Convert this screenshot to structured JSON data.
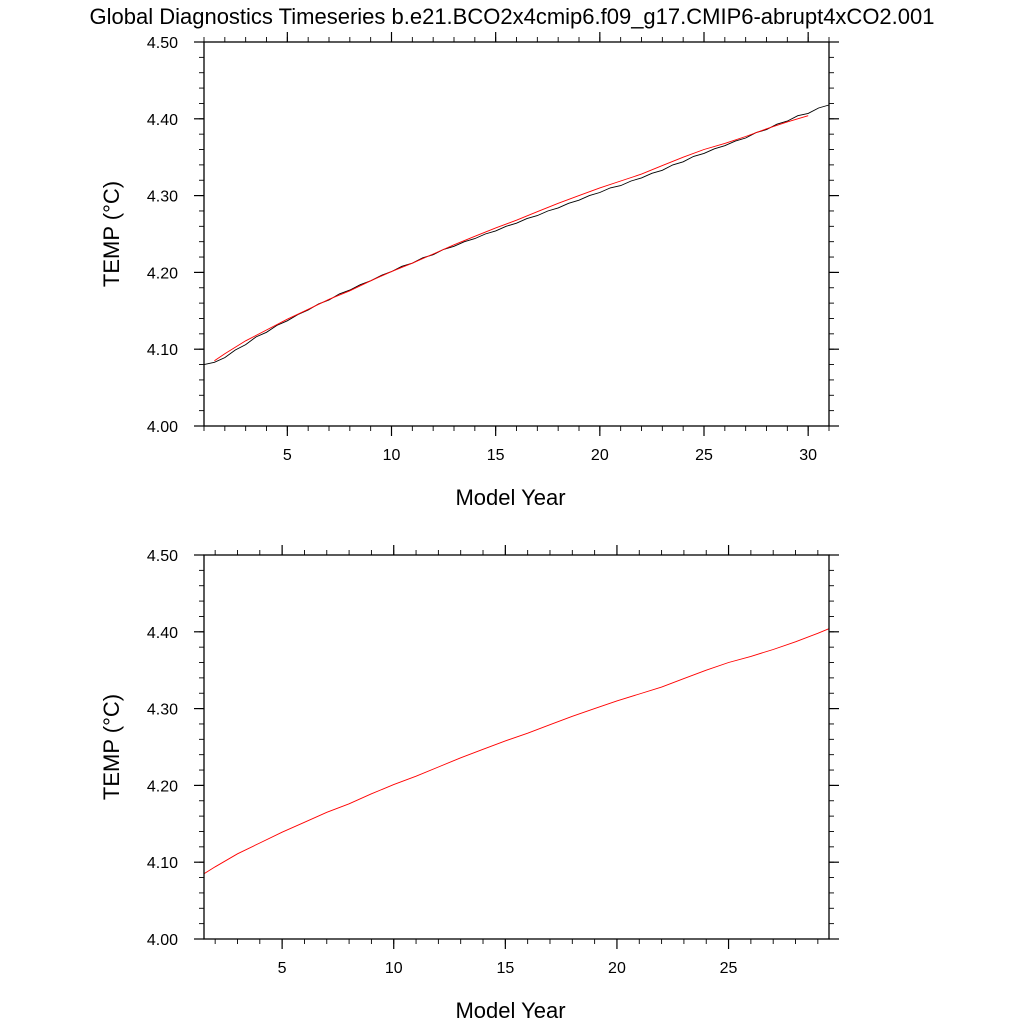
{
  "figure": {
    "title": "Global Diagnostics Timeseries b.e21.BCO2x4cmip6.f09_g17.CMIP6-abrupt4xCO2.001"
  },
  "chart_data": [
    {
      "type": "line",
      "xlabel": "Model Year",
      "ylabel": "TEMP (°C)",
      "xlim": [
        1,
        31
      ],
      "ylim": [
        4.0,
        4.5
      ],
      "xticks": [
        5,
        10,
        15,
        20,
        25,
        30
      ],
      "xtick_labels": [
        "5",
        "10",
        "15",
        "20",
        "25",
        "30"
      ],
      "yticks": [
        4.0,
        4.1,
        4.2,
        4.3,
        4.4,
        4.5
      ],
      "ytick_labels": [
        "4.00",
        "4.10",
        "4.20",
        "4.30",
        "4.40",
        "4.50"
      ],
      "grid": false,
      "series": [
        {
          "color": "#000000",
          "style": "monthly values with annual cycle",
          "x": [
            1.0,
            1.5,
            2.0,
            2.5,
            3.0,
            3.5,
            4.0,
            4.5,
            5.0,
            5.5,
            6.0,
            6.5,
            7.0,
            7.5,
            8.0,
            8.5,
            9.0,
            9.5,
            10.0,
            10.5,
            11.0,
            11.5,
            12.0,
            12.5,
            13.0,
            13.5,
            14.0,
            14.5,
            15.0,
            15.5,
            16.0,
            16.5,
            17.0,
            17.5,
            18.0,
            18.5,
            19.0,
            19.5,
            20.0,
            20.5,
            21.0,
            21.5,
            22.0,
            22.5,
            23.0,
            23.5,
            24.0,
            24.5,
            25.0,
            25.5,
            26.0,
            26.5,
            27.0,
            27.5,
            28.0,
            28.5,
            29.0,
            29.5,
            30.0,
            30.5,
            31.0
          ],
          "y": [
            4.08,
            4.083,
            4.089,
            4.099,
            4.106,
            4.116,
            4.122,
            4.131,
            4.137,
            4.145,
            4.151,
            4.159,
            4.164,
            4.172,
            4.177,
            4.184,
            4.189,
            4.196,
            4.201,
            4.208,
            4.212,
            4.219,
            4.223,
            4.23,
            4.234,
            4.24,
            4.244,
            4.25,
            4.254,
            4.26,
            4.264,
            4.27,
            4.274,
            4.28,
            4.284,
            4.29,
            4.294,
            4.3,
            4.304,
            4.31,
            4.313,
            4.319,
            4.323,
            4.329,
            4.333,
            4.34,
            4.344,
            4.351,
            4.355,
            4.361,
            4.365,
            4.371,
            4.375,
            4.382,
            4.386,
            4.393,
            4.397,
            4.404,
            4.407,
            4.414,
            4.418
          ]
        },
        {
          "color": "#ff0000",
          "style": "smoothed",
          "x": [
            1.5,
            2.0,
            3.0,
            4.0,
            5.0,
            6.0,
            7.0,
            8.0,
            9.0,
            10.0,
            11.0,
            12.0,
            13.0,
            14.0,
            15.0,
            16.0,
            17.0,
            18.0,
            19.0,
            20.0,
            21.0,
            22.0,
            23.0,
            24.0,
            25.0,
            26.0,
            27.0,
            28.0,
            29.0,
            30.0
          ],
          "y": [
            4.085,
            4.094,
            4.111,
            4.125,
            4.139,
            4.152,
            4.165,
            4.176,
            4.189,
            4.201,
            4.212,
            4.224,
            4.236,
            4.247,
            4.258,
            4.268,
            4.279,
            4.29,
            4.3,
            4.31,
            4.319,
            4.328,
            4.339,
            4.35,
            4.36,
            4.368,
            4.377,
            4.387,
            4.396,
            4.404
          ]
        }
      ]
    },
    {
      "type": "line",
      "xlabel": "Model Year",
      "ylabel": "TEMP (°C)",
      "xlim": [
        1.5,
        29.5
      ],
      "ylim": [
        4.0,
        4.5
      ],
      "xticks": [
        5,
        10,
        15,
        20,
        25
      ],
      "xtick_labels": [
        "5",
        "10",
        "15",
        "20",
        "25"
      ],
      "yticks": [
        4.0,
        4.1,
        4.2,
        4.3,
        4.4,
        4.5
      ],
      "ytick_labels": [
        "4.00",
        "4.10",
        "4.20",
        "4.30",
        "4.40",
        "4.50"
      ],
      "grid": false,
      "series": [
        {
          "color": "#ff0000",
          "style": "smoothed",
          "x": [
            1.5,
            2.0,
            3.0,
            4.0,
            5.0,
            6.0,
            7.0,
            8.0,
            9.0,
            10.0,
            11.0,
            12.0,
            13.0,
            14.0,
            15.0,
            16.0,
            17.0,
            18.0,
            19.0,
            20.0,
            21.0,
            22.0,
            23.0,
            24.0,
            25.0,
            26.0,
            27.0,
            28.0,
            29.0,
            29.5
          ],
          "y": [
            4.085,
            4.094,
            4.111,
            4.125,
            4.139,
            4.152,
            4.165,
            4.176,
            4.189,
            4.201,
            4.212,
            4.224,
            4.236,
            4.247,
            4.258,
            4.268,
            4.279,
            4.29,
            4.3,
            4.31,
            4.319,
            4.328,
            4.339,
            4.35,
            4.36,
            4.368,
            4.377,
            4.387,
            4.398,
            4.404
          ]
        }
      ]
    }
  ]
}
